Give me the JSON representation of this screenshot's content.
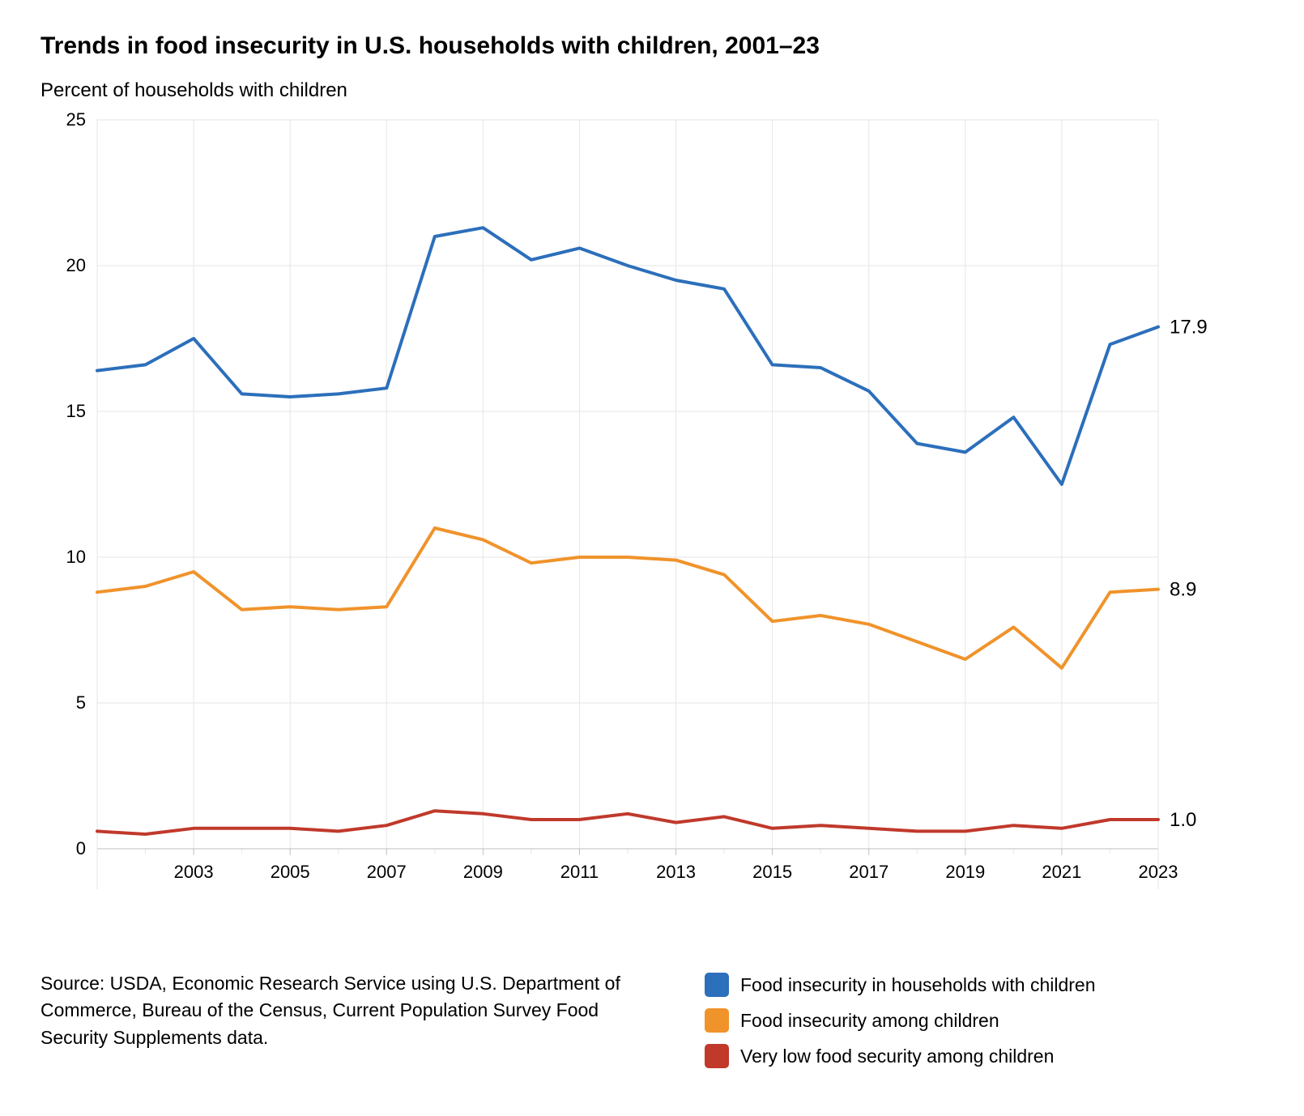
{
  "title": "Trends in food insecurity in U.S. households with children, 2001–23",
  "subtitle": "Percent of households with children",
  "source": "Source: USDA, Economic Research Service using U.S. Department of Commerce, Bureau of the Census, Current Population Survey Food Security Supplements data.",
  "chart": {
    "type": "line",
    "background_color": "#ffffff",
    "grid_color": "#e6e6e6",
    "axis_color": "#bfbfbf",
    "line_width": 4,
    "title_fontsize": 30,
    "subtitle_fontsize": 24,
    "tick_fontsize": 22,
    "endlabel_fontsize": 24,
    "years": [
      2001,
      2002,
      2003,
      2004,
      2005,
      2006,
      2007,
      2008,
      2009,
      2010,
      2011,
      2012,
      2013,
      2014,
      2015,
      2016,
      2017,
      2018,
      2019,
      2020,
      2021,
      2022,
      2023
    ],
    "x_ticks": [
      2003,
      2005,
      2007,
      2009,
      2011,
      2013,
      2015,
      2017,
      2019,
      2021,
      2023
    ],
    "y_min": 0,
    "y_max": 25,
    "y_ticks": [
      0,
      5,
      10,
      15,
      20,
      25
    ],
    "series": [
      {
        "name": "Food insecurity in households with children",
        "color": "#2c6fbb",
        "values": [
          16.4,
          16.6,
          17.5,
          15.6,
          15.5,
          15.6,
          15.8,
          21.0,
          21.3,
          20.2,
          20.6,
          20.0,
          19.5,
          19.2,
          16.6,
          16.5,
          15.7,
          13.9,
          13.6,
          14.8,
          12.5,
          17.3,
          17.9
        ],
        "end_label": "17.9"
      },
      {
        "name": "Food insecurity among children",
        "color": "#f0932b",
        "values": [
          8.8,
          9.0,
          9.5,
          8.2,
          8.3,
          8.2,
          8.3,
          11.0,
          10.6,
          9.8,
          10.0,
          10.0,
          9.9,
          9.4,
          7.8,
          8.0,
          7.7,
          7.1,
          6.5,
          7.6,
          6.2,
          8.8,
          8.9
        ],
        "end_label": "8.9"
      },
      {
        "name": "Very low food security among children",
        "color": "#c0392b",
        "values": [
          0.6,
          0.5,
          0.7,
          0.7,
          0.7,
          0.6,
          0.8,
          1.3,
          1.2,
          1.0,
          1.0,
          1.2,
          0.9,
          1.1,
          0.7,
          0.8,
          0.7,
          0.6,
          0.6,
          0.8,
          0.7,
          1.0,
          1.0
        ],
        "end_label": "1.0"
      }
    ]
  },
  "legend": [
    {
      "color": "#2c6fbb",
      "label": "Food insecurity in households with children"
    },
    {
      "color": "#f0932b",
      "label": "Food insecurity among children"
    },
    {
      "color": "#c0392b",
      "label": "Very low food security among children"
    }
  ]
}
